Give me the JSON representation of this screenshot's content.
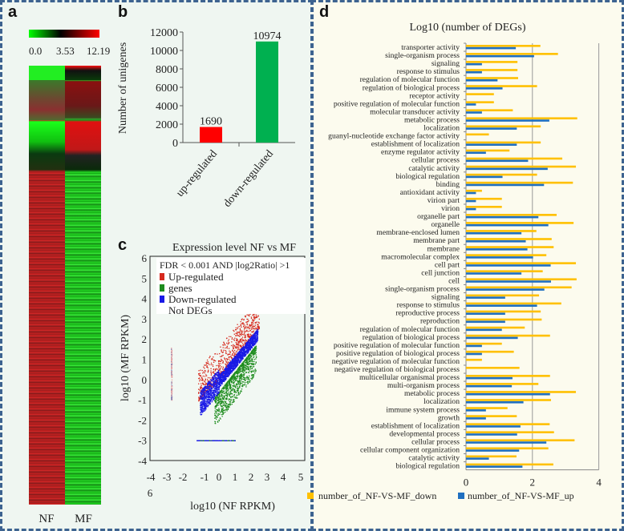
{
  "panels": {
    "a": "a",
    "b": "b",
    "c": "c",
    "d": "d"
  },
  "heatmap": {
    "scale_ticks": [
      "0.0",
      "3.53",
      "12.19"
    ],
    "scale_colors": [
      "#00ff00",
      "#000000",
      "#ff0000"
    ],
    "columns": [
      "NF",
      "MF"
    ]
  },
  "chart_data": [
    {
      "type": "bar",
      "panel": "b",
      "categories": [
        "up-regulated",
        "down-regulated"
      ],
      "values": [
        1690,
        10974
      ],
      "data_labels": [
        "1690",
        "10974"
      ],
      "colors": [
        "#ff0000",
        "#00b050"
      ],
      "ylabel": "Number of unigenes",
      "xlabel": "",
      "ylim": [
        0,
        12000
      ],
      "yticks": [
        "0",
        "2000",
        "4000",
        "6000",
        "8000",
        "10000",
        "12000"
      ]
    },
    {
      "type": "scatter",
      "panel": "c",
      "title": "Expression level NF vs MF",
      "xlabel": "log10 (NF RPKM)",
      "ylabel": "log10 (MF RPKM)",
      "xlim": [
        -4,
        5
      ],
      "ylim": [
        -4,
        6
      ],
      "xticks": [
        "-4",
        "-3",
        "-2",
        "-1",
        "0",
        "1",
        "2",
        "3",
        "4",
        "5"
      ],
      "xtick_extra": "6",
      "yticks": [
        "6",
        "5",
        "4",
        "3",
        "2",
        "1",
        "0",
        "-1",
        "-2",
        "-3",
        "-4"
      ],
      "legend_title": "FDR < 0.001 AND |log2Ratio| >1",
      "legend": [
        {
          "label": "Up-regulated",
          "color": "#d62a1e"
        },
        {
          "label": "genes",
          "color": "#1e8c1e"
        },
        {
          "label": "Down-regulated",
          "color": "#1a1ae6"
        },
        {
          "label": "Not DEGs",
          "color": ""
        }
      ],
      "legend_position": "top-left"
    },
    {
      "type": "bar",
      "orientation": "horizontal",
      "panel": "d",
      "title": "Log10 (number of DEGs)",
      "xlim": [
        0,
        4
      ],
      "xticks": [
        "0",
        "2",
        "4"
      ],
      "series": [
        {
          "name": "number_of_NF-VS-MF_down",
          "color": "#ffc000"
        },
        {
          "name": "number_of_NF-VS-MF_up",
          "color": "#1f6fc0"
        }
      ],
      "categories": [
        "transporter activity",
        "single-organism process",
        "signaling",
        "response to stimulus",
        "regulation of molecular function",
        "regulation of biological process",
        "receptor activity",
        "positive regulation of molecular function",
        "molecular transducer activity",
        "metabolic process",
        "localization",
        "guanyl-nucleotide exchange factor activity",
        "establishment of localization",
        "enzyme regulator activity",
        "cellular process",
        "catalytic activity",
        "biological regulation",
        "binding",
        "antioxidant activity",
        "virion part",
        "virion",
        "organelle part",
        "organelle",
        "membrane-enclosed lumen",
        "membrane part",
        "membrane",
        "macromolecular complex",
        "cell part",
        "cell junction",
        "cell",
        "single-organism process",
        "signaling",
        "response to stimulus",
        "reproductive process",
        "reproduction",
        "regulation of molecular function",
        "regulation of biological process",
        "positive regulation of molecular function",
        "positive regulation of biological process",
        "negative regulation of molecular function",
        "negative regulation of biological process",
        "multicellular organismal process",
        "multi-organism process",
        "metabolic process",
        "localization",
        "immune system process",
        "growth",
        "establishment of localization",
        "developmental process",
        "cellular process",
        "cellular component organization",
        "catalytic activity",
        "biological regulation"
      ],
      "down": [
        2.24,
        2.77,
        1.55,
        1.55,
        1.57,
        2.14,
        0.84,
        0.84,
        1.41,
        3.35,
        2.25,
        0.69,
        2.25,
        1.31,
        2.9,
        3.31,
        2.14,
        3.22,
        0.48,
        1.08,
        1.08,
        2.73,
        3.24,
        2.12,
        2.58,
        2.64,
        2.42,
        3.31,
        2.31,
        3.33,
        3.18,
        2.2,
        2.87,
        2.25,
        2.28,
        1.77,
        2.53,
        1.08,
        1.44,
        0.48,
        1.61,
        2.53,
        2.18,
        3.31,
        2.56,
        1.25,
        1.53,
        2.52,
        2.65,
        3.27,
        2.48,
        1.52,
        2.63
      ],
      "up": [
        1.5,
        2.05,
        0.48,
        0.48,
        0.95,
        1.1,
        0,
        0.3,
        0.48,
        2.51,
        1.53,
        0,
        1.53,
        0.6,
        1.87,
        2.46,
        1.1,
        2.35,
        0.3,
        0.3,
        0.3,
        2.18,
        2.48,
        1.67,
        1.8,
        1.85,
        2.02,
        2.55,
        1.67,
        2.56,
        2.36,
        1.18,
        2.14,
        1.18,
        1.18,
        1.08,
        1.56,
        0.48,
        0.48,
        0,
        0,
        1.4,
        1.38,
        2.53,
        1.73,
        0.6,
        0.6,
        1.64,
        1.54,
        2.42,
        1.6,
        0.69,
        1.7
      ]
    }
  ]
}
